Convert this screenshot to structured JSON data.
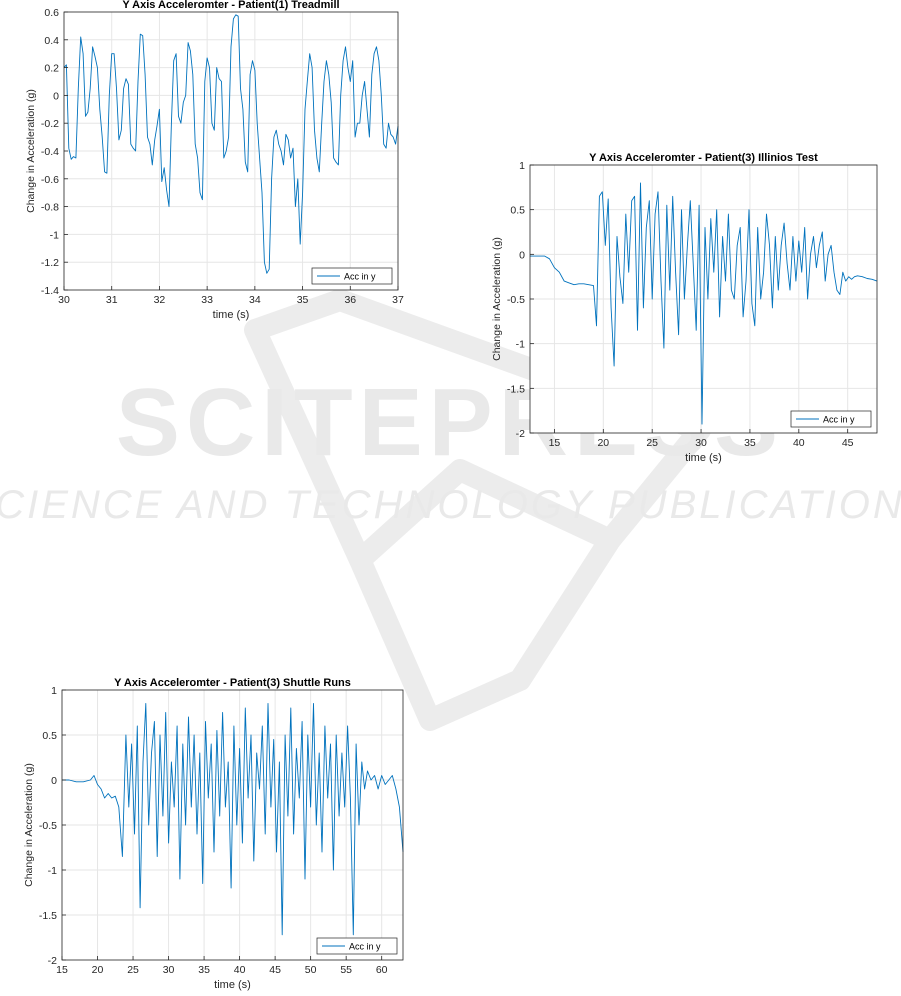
{
  "watermark": {
    "title": "SCITEPRESS",
    "subtitle": "SCIENCE AND TECHNOLOGY PUBLICATIONS"
  },
  "colors": {
    "series": "#0072BD",
    "grid": "#e6e6e6",
    "axis": "#262626",
    "watermark": "#e9e9e9"
  },
  "chart_data": [
    {
      "type": "line",
      "title": "Y Axis Acceleromter - Patient(1) Treadmill",
      "xlabel": "time (s)",
      "ylabel": "Change in Acceleration (g)",
      "xlim": [
        30,
        37
      ],
      "ylim": [
        -1.4,
        0.6
      ],
      "xticks": [
        30,
        31,
        32,
        33,
        34,
        35,
        36,
        37
      ],
      "yticks": [
        -1.4,
        -1.2,
        -1,
        -0.8,
        -0.6,
        -0.4,
        -0.2,
        0,
        0.2,
        0.4,
        0.6
      ],
      "ytick_labels": [
        "-1.4",
        "-1.2",
        "-1",
        "-0.8",
        "-0.6",
        "-0.4",
        "-0.2",
        "0",
        "0.2",
        "0.4",
        "0.6"
      ],
      "xtick_labels": [
        "30",
        "31",
        "32",
        "33",
        "34",
        "35",
        "36",
        "37"
      ],
      "grid": true,
      "legend_position": "bottom-right",
      "series": [
        {
          "name": "Acc in y",
          "x": [
            30.0,
            30.05,
            30.1,
            30.15,
            30.2,
            30.25,
            30.3,
            30.35,
            30.4,
            30.45,
            30.5,
            30.55,
            30.6,
            30.65,
            30.7,
            30.75,
            30.8,
            30.85,
            30.9,
            30.95,
            31.0,
            31.05,
            31.1,
            31.15,
            31.2,
            31.25,
            31.3,
            31.35,
            31.4,
            31.45,
            31.5,
            31.55,
            31.6,
            31.65,
            31.7,
            31.75,
            31.8,
            31.85,
            31.9,
            31.95,
            32.0,
            32.05,
            32.1,
            32.15,
            32.2,
            32.25,
            32.3,
            32.35,
            32.4,
            32.45,
            32.5,
            32.55,
            32.6,
            32.65,
            32.7,
            32.75,
            32.8,
            32.85,
            32.9,
            32.95,
            33.0,
            33.05,
            33.1,
            33.15,
            33.2,
            33.25,
            33.3,
            33.35,
            33.4,
            33.45,
            33.5,
            33.55,
            33.6,
            33.65,
            33.7,
            33.75,
            33.8,
            33.85,
            33.9,
            33.95,
            34.0,
            34.05,
            34.1,
            34.15,
            34.2,
            34.25,
            34.3,
            34.35,
            34.4,
            34.45,
            34.5,
            34.55,
            34.6,
            34.65,
            34.7,
            34.75,
            34.8,
            34.85,
            34.9,
            34.95,
            35.0,
            35.05,
            35.1,
            35.15,
            35.2,
            35.25,
            35.3,
            35.35,
            35.4,
            35.45,
            35.5,
            35.55,
            35.6,
            35.65,
            35.7,
            35.75,
            35.8,
            35.85,
            35.9,
            35.95,
            36.0,
            36.05,
            36.1,
            36.15,
            36.2,
            36.25,
            36.3,
            36.35,
            36.4,
            36.45,
            36.5,
            36.55,
            36.6,
            36.65,
            36.7,
            36.75,
            36.8,
            36.85,
            36.9,
            36.95,
            37.0
          ],
          "y": [
            0.2,
            0.22,
            -0.38,
            -0.46,
            -0.44,
            -0.45,
            0.05,
            0.42,
            0.3,
            -0.15,
            -0.12,
            0.05,
            0.35,
            0.28,
            0.2,
            -0.1,
            -0.3,
            -0.55,
            -0.56,
            0.0,
            0.3,
            0.3,
            0.05,
            -0.32,
            -0.25,
            0.05,
            0.12,
            0.08,
            -0.35,
            -0.38,
            -0.4,
            0.1,
            0.44,
            0.43,
            0.15,
            -0.3,
            -0.35,
            -0.5,
            -0.32,
            -0.22,
            -0.1,
            -0.62,
            -0.52,
            -0.68,
            -0.8,
            -0.2,
            0.25,
            0.3,
            -0.15,
            -0.2,
            -0.05,
            0.0,
            0.38,
            0.32,
            0.15,
            -0.35,
            -0.45,
            -0.7,
            -0.75,
            0.1,
            0.27,
            0.2,
            -0.2,
            -0.25,
            0.2,
            0.12,
            0.1,
            -0.45,
            -0.4,
            -0.3,
            0.35,
            0.55,
            0.58,
            0.57,
            0.05,
            -0.1,
            -0.48,
            -0.55,
            0.15,
            0.25,
            0.18,
            -0.2,
            -0.45,
            -0.7,
            -1.2,
            -1.28,
            -1.25,
            -0.6,
            -0.3,
            -0.25,
            -0.35,
            -0.4,
            -0.5,
            -0.28,
            -0.32,
            -0.45,
            -0.38,
            -0.8,
            -0.6,
            -1.07,
            -0.7,
            -0.1,
            0.1,
            0.3,
            0.2,
            -0.25,
            -0.45,
            -0.55,
            -0.2,
            0.1,
            0.25,
            0.15,
            -0.05,
            -0.45,
            -0.48,
            -0.5,
            0.0,
            0.25,
            0.35,
            0.2,
            0.1,
            0.25,
            -0.3,
            -0.2,
            -0.2,
            0.0,
            0.1,
            -0.1,
            -0.3,
            0.15,
            0.3,
            0.35,
            0.25,
            0.0,
            -0.35,
            -0.38,
            -0.2,
            -0.28,
            -0.3,
            -0.35,
            -0.22
          ]
        }
      ]
    },
    {
      "type": "line",
      "title": "Y Axis Acceleromter - Patient(3) Illinios Test",
      "xlabel": "time (s)",
      "ylabel": "Change in Acceleration (g)",
      "xlim": [
        12.5,
        48
      ],
      "ylim": [
        -2,
        1
      ],
      "xticks": [
        15,
        20,
        25,
        30,
        35,
        40,
        45
      ],
      "yticks": [
        -2,
        -1.5,
        -1,
        -0.5,
        0,
        0.5,
        1
      ],
      "ytick_labels": [
        "-2",
        "-1.5",
        "-1",
        "-0.5",
        "0",
        "0.5",
        "1"
      ],
      "xtick_labels": [
        "15",
        "20",
        "25",
        "30",
        "35",
        "40",
        "45"
      ],
      "grid": true,
      "legend_position": "bottom-right",
      "series": [
        {
          "name": "Acc in y",
          "x": [
            12.5,
            13.0,
            13.5,
            14.0,
            14.5,
            15.0,
            15.5,
            16.0,
            16.5,
            17.0,
            17.5,
            18.0,
            18.5,
            19.0,
            19.3,
            19.6,
            19.9,
            20.2,
            20.5,
            20.8,
            21.1,
            21.4,
            21.7,
            22.0,
            22.3,
            22.6,
            22.9,
            23.2,
            23.5,
            23.8,
            24.1,
            24.4,
            24.7,
            25.0,
            25.3,
            25.6,
            25.9,
            26.2,
            26.5,
            26.8,
            27.1,
            27.4,
            27.7,
            28.0,
            28.3,
            28.6,
            28.9,
            29.2,
            29.5,
            29.8,
            30.1,
            30.4,
            30.7,
            31.0,
            31.3,
            31.6,
            31.9,
            32.2,
            32.5,
            32.8,
            33.1,
            33.4,
            33.7,
            34.0,
            34.3,
            34.6,
            34.9,
            35.2,
            35.5,
            35.8,
            36.1,
            36.4,
            36.7,
            37.0,
            37.3,
            37.6,
            37.9,
            38.2,
            38.5,
            38.8,
            39.1,
            39.4,
            39.7,
            40.0,
            40.3,
            40.6,
            40.9,
            41.2,
            41.5,
            41.8,
            42.1,
            42.4,
            42.7,
            43.0,
            43.3,
            43.6,
            43.9,
            44.2,
            44.5,
            44.8,
            45.1,
            45.4,
            45.7,
            46.0,
            46.5,
            47.0,
            47.5,
            48.0
          ],
          "y": [
            -0.02,
            -0.02,
            -0.02,
            -0.02,
            -0.05,
            -0.15,
            -0.2,
            -0.3,
            -0.32,
            -0.34,
            -0.33,
            -0.33,
            -0.34,
            -0.35,
            -0.8,
            0.65,
            0.7,
            0.1,
            0.62,
            -0.6,
            -1.25,
            0.2,
            -0.25,
            -0.55,
            0.45,
            -0.2,
            0.6,
            0.65,
            -0.85,
            0.8,
            -0.6,
            0.3,
            0.6,
            -0.5,
            0.45,
            0.7,
            -0.3,
            -1.05,
            0.55,
            -0.4,
            0.65,
            -0.2,
            -0.9,
            0.5,
            -0.5,
            0.1,
            0.6,
            -0.1,
            -0.85,
            0.55,
            -1.9,
            0.3,
            -0.5,
            0.4,
            -0.2,
            0.5,
            -0.7,
            0.2,
            -0.3,
            0.45,
            -0.4,
            -0.5,
            0.1,
            0.3,
            -0.7,
            -0.3,
            0.5,
            -0.55,
            -0.8,
            0.3,
            -0.5,
            -0.2,
            0.45,
            0.1,
            -0.6,
            0.2,
            -0.4,
            0.1,
            0.35,
            -0.1,
            -0.4,
            0.2,
            -0.3,
            0.15,
            -0.2,
            0.3,
            -0.5,
            0.0,
            0.2,
            -0.15,
            0.1,
            0.25,
            -0.3,
            0.0,
            0.1,
            -0.2,
            -0.4,
            -0.45,
            -0.2,
            -0.3,
            -0.25,
            -0.28,
            -0.25,
            -0.24,
            -0.25,
            -0.27,
            -0.28,
            -0.3
          ]
        }
      ]
    },
    {
      "type": "line",
      "title": "Y Axis Acceleromter - Patient(3) Shuttle Runs",
      "xlabel": "time (s)",
      "ylabel": "Change in Acceleration (g)",
      "xlim": [
        15,
        63
      ],
      "ylim": [
        -2,
        1
      ],
      "xticks": [
        15,
        20,
        25,
        30,
        35,
        40,
        45,
        50,
        55,
        60
      ],
      "yticks": [
        -2,
        -1.5,
        -1,
        -0.5,
        0,
        0.5,
        1
      ],
      "ytick_labels": [
        "-2",
        "-1.5",
        "-1",
        "-0.5",
        "0",
        "0.5",
        "1"
      ],
      "xtick_labels": [
        "15",
        "20",
        "25",
        "30",
        "35",
        "40",
        "45",
        "50",
        "55",
        "60"
      ],
      "grid": true,
      "legend_position": "bottom-right",
      "series": [
        {
          "name": "Acc in y",
          "x": [
            15.0,
            16.0,
            17.0,
            18.0,
            19.0,
            19.5,
            20.0,
            20.5,
            21.0,
            21.5,
            22.0,
            22.5,
            23.0,
            23.5,
            24.0,
            24.4,
            24.8,
            25.2,
            25.6,
            26.0,
            26.4,
            26.8,
            27.2,
            27.6,
            28.0,
            28.4,
            28.8,
            29.2,
            29.6,
            30.0,
            30.4,
            30.8,
            31.2,
            31.6,
            32.0,
            32.4,
            32.8,
            33.2,
            33.6,
            34.0,
            34.4,
            34.8,
            35.2,
            35.6,
            36.0,
            36.4,
            36.8,
            37.2,
            37.6,
            38.0,
            38.4,
            38.8,
            39.2,
            39.6,
            40.0,
            40.4,
            40.8,
            41.2,
            41.6,
            42.0,
            42.4,
            42.8,
            43.2,
            43.6,
            44.0,
            44.4,
            44.8,
            45.2,
            45.6,
            46.0,
            46.4,
            46.8,
            47.2,
            47.6,
            48.0,
            48.4,
            48.8,
            49.2,
            49.6,
            50.0,
            50.4,
            50.8,
            51.2,
            51.6,
            52.0,
            52.4,
            52.8,
            53.2,
            53.6,
            54.0,
            54.4,
            54.8,
            55.2,
            55.6,
            56.0,
            56.4,
            56.8,
            57.2,
            57.6,
            58.0,
            58.5,
            59.0,
            59.5,
            60.0,
            60.5,
            61.0,
            61.5,
            62.0,
            62.5,
            63.0
          ],
          "y": [
            0.0,
            0.0,
            -0.02,
            -0.02,
            0.0,
            0.05,
            -0.05,
            -0.1,
            -0.2,
            -0.15,
            -0.2,
            -0.18,
            -0.3,
            -0.85,
            0.5,
            -0.3,
            0.4,
            -0.6,
            0.6,
            -1.42,
            0.2,
            0.85,
            -0.5,
            0.3,
            0.65,
            -0.85,
            0.5,
            -0.4,
            0.75,
            -0.7,
            0.2,
            -0.3,
            0.6,
            -1.1,
            0.4,
            -0.5,
            0.7,
            -0.3,
            0.5,
            -0.6,
            0.3,
            -1.15,
            0.65,
            -0.2,
            0.4,
            -0.8,
            0.55,
            -0.4,
            0.75,
            -0.3,
            0.2,
            -1.2,
            0.6,
            -0.5,
            0.35,
            -0.7,
            0.8,
            -0.2,
            0.5,
            -0.9,
            0.3,
            -0.1,
            0.6,
            -0.6,
            0.85,
            -0.3,
            0.45,
            -0.8,
            0.2,
            -1.72,
            0.5,
            -0.4,
            0.8,
            -0.6,
            0.35,
            -0.2,
            0.65,
            -1.1,
            0.5,
            -0.3,
            0.85,
            -0.5,
            0.3,
            -0.8,
            0.6,
            -0.2,
            0.4,
            -1.0,
            0.5,
            -0.4,
            0.3,
            -0.3,
            0.6,
            -0.2,
            -1.72,
            0.4,
            -0.5,
            0.2,
            -0.1,
            0.1,
            0.0,
            0.05,
            -0.1,
            0.05,
            -0.05,
            0.0,
            0.05,
            -0.1,
            -0.3,
            -0.8
          ]
        }
      ]
    }
  ]
}
